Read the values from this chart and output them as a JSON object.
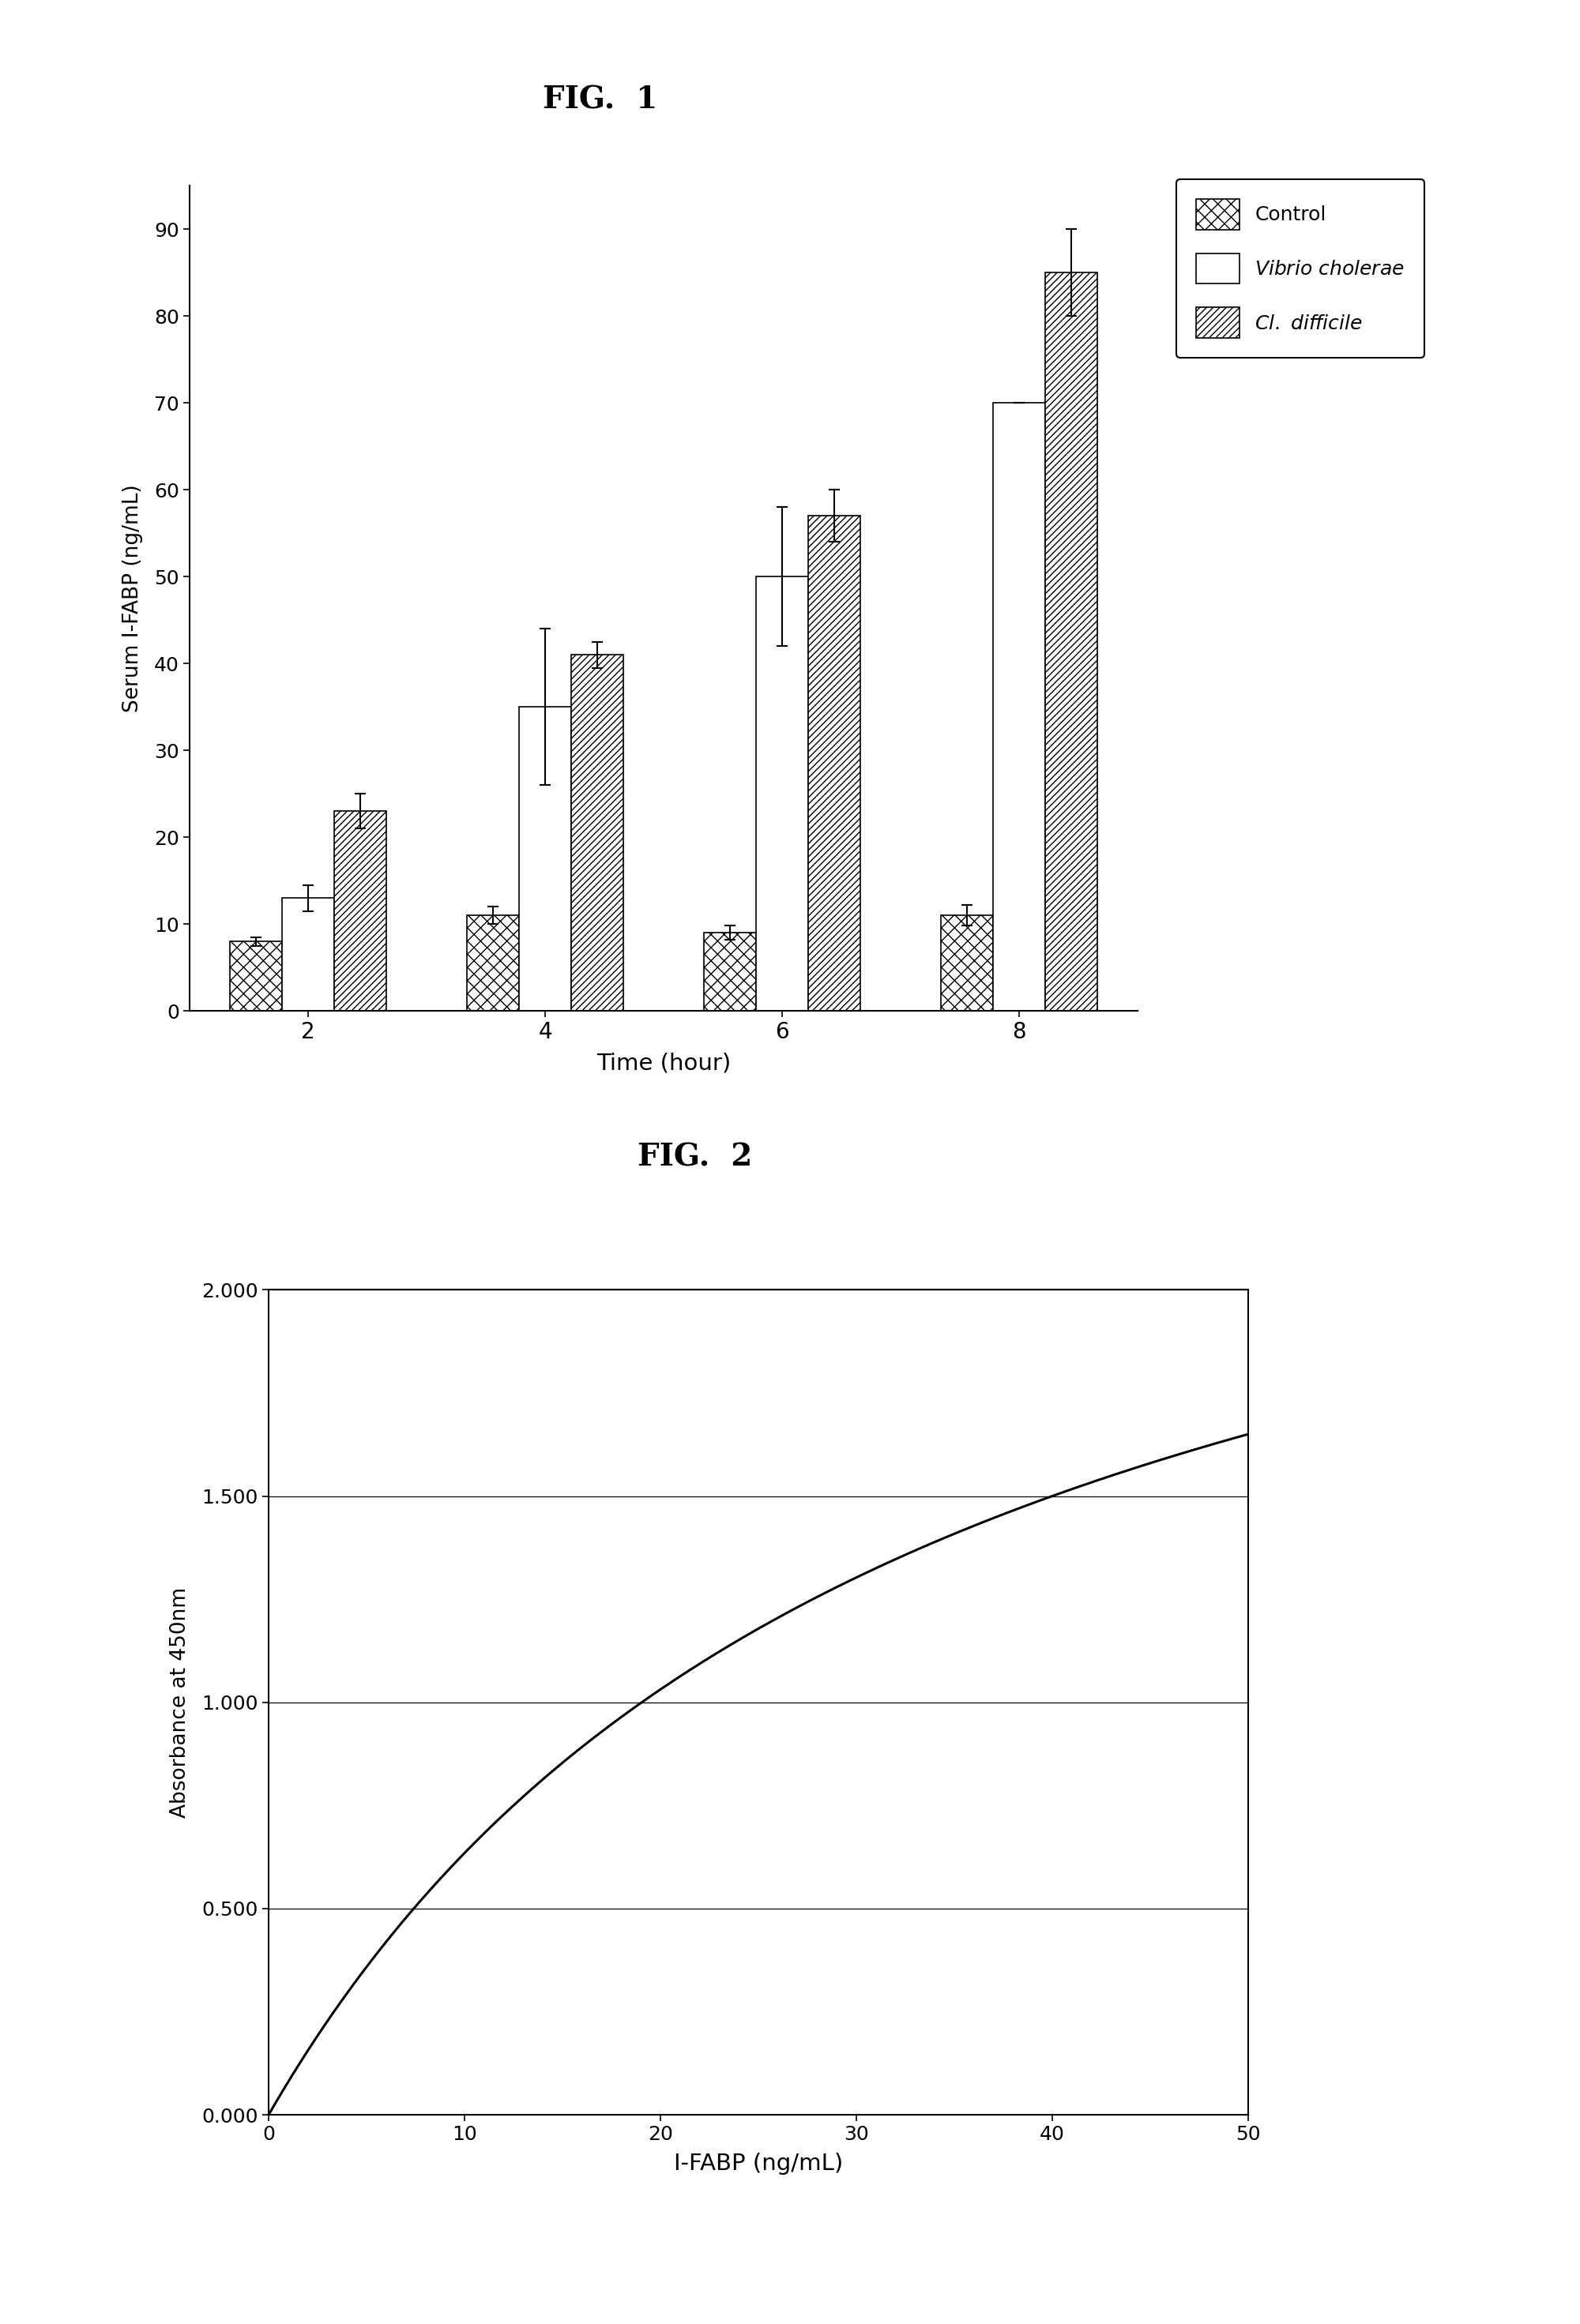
{
  "fig1_title": "FIG.  1",
  "fig2_title": "FIG.  2",
  "time_points": [
    2,
    4,
    6,
    8
  ],
  "control_values": [
    8,
    11,
    9,
    11
  ],
  "control_errors": [
    0.5,
    1.0,
    0.8,
    1.2
  ],
  "vibrio_values": [
    13,
    35,
    50,
    70
  ],
  "vibrio_errors": [
    1.5,
    9,
    8,
    0
  ],
  "cl_diff_values": [
    23,
    41,
    57,
    85
  ],
  "cl_diff_errors": [
    2,
    1.5,
    3,
    5
  ],
  "fig1_ylabel": "Serum I-FABP (ng/mL)",
  "fig1_xlabel": "Time (hour)",
  "fig1_ylim": [
    0,
    95
  ],
  "fig1_yticks": [
    0,
    10,
    20,
    30,
    40,
    50,
    60,
    70,
    80,
    90
  ],
  "fig2_xlabel": "I-FABP (ng/mL)",
  "fig2_ylabel": "Absorbance at 450nm",
  "fig2_xlim": [
    0,
    50
  ],
  "fig2_ylim": [
    0.0,
    2.0
  ],
  "fig2_ytick_vals": [
    0.0,
    0.5,
    1.0,
    1.5,
    2.0
  ],
  "fig2_ytick_labels": [
    "0.000",
    "0.500",
    "1.000",
    "1.500",
    "2.000"
  ],
  "fig2_xticks": [
    0,
    10,
    20,
    30,
    40,
    50
  ],
  "bar_width": 0.22,
  "background_color": "#ffffff",
  "curve_Vmax": 2.8,
  "curve_Km": 12.0
}
